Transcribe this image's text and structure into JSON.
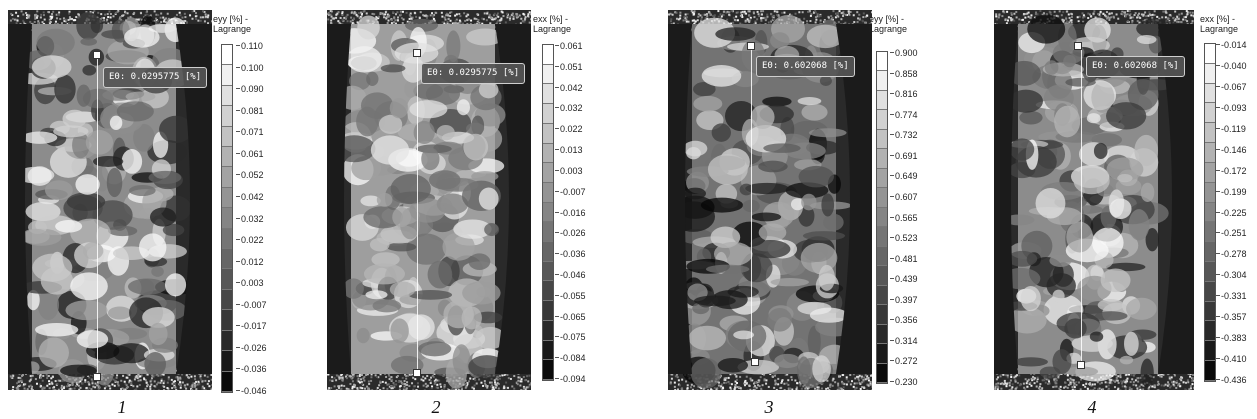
{
  "panels": [
    {
      "caption": "1",
      "tooltip": "E0: 0.0295775 [%]",
      "legend_title": [
        "eyy [%] -",
        "Lagrange"
      ],
      "ticks": [
        "0.110",
        "0.100",
        "0.090",
        "0.081",
        "0.071",
        "0.061",
        "0.052",
        "0.042",
        "0.032",
        "0.022",
        "0.012",
        "0.003",
        "-0.007",
        "-0.017",
        "-0.026",
        "-0.036",
        "-0.046"
      ],
      "field_contrast": 0.75,
      "field_mean": 0.55
    },
    {
      "caption": "2",
      "tooltip": "E0: 0.0295775 [%]",
      "legend_title": [
        "exx [%] -",
        "Lagrange"
      ],
      "ticks": [
        "0.061",
        "0.051",
        "0.042",
        "0.032",
        "0.022",
        "0.013",
        "0.003",
        "-0.007",
        "-0.016",
        "-0.026",
        "-0.036",
        "-0.046",
        "-0.055",
        "-0.065",
        "-0.075",
        "-0.084",
        "-0.094"
      ],
      "field_contrast": 0.55,
      "field_mean": 0.62
    },
    {
      "caption": "3",
      "tooltip": "E0: 0.602068 [%]",
      "legend_title": [
        "eyy [%] -",
        "Lagrange"
      ],
      "ticks": [
        "0.900",
        "0.858",
        "0.816",
        "0.774",
        "0.732",
        "0.691",
        "0.649",
        "0.607",
        "0.565",
        "0.523",
        "0.481",
        "0.439",
        "0.397",
        "0.356",
        "0.314",
        "0.272",
        "0.230"
      ],
      "field_contrast": 0.7,
      "field_mean": 0.45
    },
    {
      "caption": "4",
      "tooltip": "E0: 0.602068 [%]",
      "legend_title": [
        "exx [%] -",
        "Lagrange"
      ],
      "ticks": [
        "-0.014",
        "-0.040",
        "-0.067",
        "-0.093",
        "-0.119",
        "-0.146",
        "-0.172",
        "-0.199",
        "-0.225",
        "-0.251",
        "-0.278",
        "-0.304",
        "-0.331",
        "-0.357",
        "-0.383",
        "-0.410",
        "-0.436"
      ],
      "field_contrast": 0.7,
      "field_mean": 0.55
    }
  ]
}
